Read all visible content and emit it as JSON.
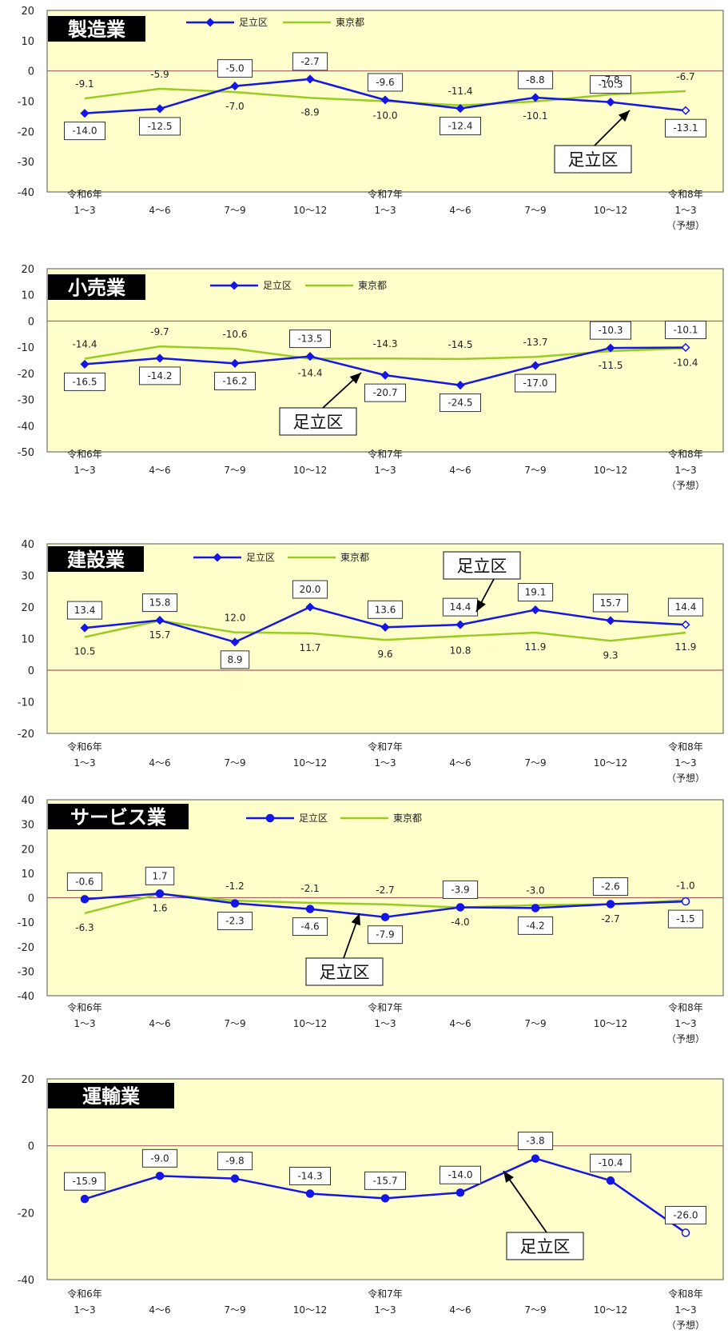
{
  "colors": {
    "plot_bg": "#FFFFCC",
    "adachi_line": "#1515E6",
    "tokyo_line": "#99CC22",
    "zero_line": "#A06060",
    "title_box": "#000000",
    "title_text": "#FFFFFF"
  },
  "icons": {
    "adachi_marker": "diamond-marker-icon",
    "callout_arrow": "arrow-icon"
  },
  "chart_data": [
    {
      "type": "line",
      "title": "製造業",
      "categories": [
        [
          "令和6年",
          "1～3"
        ],
        [
          "",
          "4～6"
        ],
        [
          "",
          "7～9"
        ],
        [
          "",
          "10～12"
        ],
        [
          "令和7年",
          "1～3"
        ],
        [
          "",
          "4～6"
        ],
        [
          "",
          "7～9"
        ],
        [
          "",
          "10～12"
        ],
        [
          "令和8年",
          "1～3",
          "（予想）"
        ]
      ],
      "ylim": [
        -40,
        20
      ],
      "yticks": [
        "20",
        "10",
        "0",
        "-10",
        "-20",
        "-30",
        "-40"
      ],
      "series": [
        {
          "name": "足立区",
          "values": [
            -14.0,
            -12.5,
            -5.0,
            -2.7,
            -9.6,
            -12.4,
            -8.8,
            -10.3,
            -13.1
          ],
          "labels": [
            "-14.0",
            "-12.5",
            "-5.0",
            "-2.7",
            "-9.6",
            "-12.4",
            "-8.8",
            "-10.3",
            "-13.1"
          ],
          "marker": "diamond"
        },
        {
          "name": "東京都",
          "values": [
            -9.1,
            -5.9,
            -7.0,
            -8.9,
            -10.0,
            -11.4,
            -10.1,
            -7.8,
            -6.7
          ],
          "labels": [
            "-9.1",
            "-5.9",
            "-7.0",
            "-8.9",
            "-10.0",
            "-11.4",
            "-10.1",
            "-7.8",
            "-6.7"
          ]
        }
      ],
      "callout": "足立区"
    },
    {
      "type": "line",
      "title": "小売業",
      "categories": [
        [
          "令和6年",
          "1～3"
        ],
        [
          "",
          "4～6"
        ],
        [
          "",
          "7～9"
        ],
        [
          "",
          "10～12"
        ],
        [
          "令和7年",
          "1～3"
        ],
        [
          "",
          "4～6"
        ],
        [
          "",
          "7～9"
        ],
        [
          "",
          "10～12"
        ],
        [
          "令和8年",
          "1～3",
          "（予想）"
        ]
      ],
      "ylim": [
        -50,
        20
      ],
      "yticks": [
        "20",
        "10",
        "0",
        "-10",
        "-20",
        "-30",
        "-40",
        "-50"
      ],
      "series": [
        {
          "name": "足立区",
          "values": [
            -16.5,
            -14.2,
            -16.2,
            -13.5,
            -20.7,
            -24.5,
            -17.0,
            -10.3,
            -10.1
          ],
          "labels": [
            "-16.5",
            "-14.2",
            "-16.2",
            "-13.5",
            "-20.7",
            "-24.5",
            "-17.0",
            "-10.3",
            "-10.1"
          ],
          "marker": "diamond"
        },
        {
          "name": "東京都",
          "values": [
            -14.4,
            -9.7,
            -10.6,
            -14.4,
            -14.3,
            -14.5,
            -13.7,
            -11.5,
            -10.4
          ],
          "labels": [
            "-14.4",
            "-9.7",
            "-10.6",
            "-14.4",
            "-14.3",
            "-14.5",
            "-13.7",
            "-11.5",
            "-10.4"
          ]
        }
      ],
      "callout": "足立区"
    },
    {
      "type": "line",
      "title": "建設業",
      "categories": [
        [
          "令和6年",
          "1～3"
        ],
        [
          "",
          "4～6"
        ],
        [
          "",
          "7～9"
        ],
        [
          "",
          "10～12"
        ],
        [
          "令和7年",
          "1～3"
        ],
        [
          "",
          "4～6"
        ],
        [
          "",
          "7～9"
        ],
        [
          "",
          "10～12"
        ],
        [
          "令和8年",
          "1～3",
          "（予想）"
        ]
      ],
      "ylim": [
        -20,
        40
      ],
      "yticks": [
        "40",
        "30",
        "20",
        "10",
        "0",
        "-10",
        "-20"
      ],
      "series": [
        {
          "name": "足立区",
          "values": [
            13.4,
            15.8,
            8.9,
            20.0,
            13.6,
            14.4,
            19.1,
            15.7,
            14.4
          ],
          "labels": [
            "13.4",
            "15.8",
            "8.9",
            "20.0",
            "13.6",
            "14.4",
            "19.1",
            "15.7",
            "14.4"
          ],
          "marker": "diamond"
        },
        {
          "name": "東京都",
          "values": [
            10.5,
            15.7,
            12.0,
            11.7,
            9.6,
            10.8,
            11.9,
            9.3,
            11.9
          ],
          "labels": [
            "10.5",
            "15.7",
            "12.0",
            "11.7",
            "9.6",
            "10.8",
            "11.9",
            "9.3",
            "11.9"
          ]
        }
      ],
      "callout": "足立区"
    },
    {
      "type": "line",
      "title": "サービス業",
      "categories": [
        [
          "令和6年",
          "1～3"
        ],
        [
          "",
          "4～6"
        ],
        [
          "",
          "7～9"
        ],
        [
          "",
          "10～12"
        ],
        [
          "令和7年",
          "1～3"
        ],
        [
          "",
          "4～6"
        ],
        [
          "",
          "7～9"
        ],
        [
          "",
          "10～12"
        ],
        [
          "令和8年",
          "1～3",
          "（予想）"
        ]
      ],
      "ylim": [
        -40,
        40
      ],
      "yticks": [
        "40",
        "30",
        "20",
        "10",
        "0",
        "-10",
        "-20",
        "-30",
        "-40"
      ],
      "series": [
        {
          "name": "足立区",
          "values": [
            -0.6,
            1.7,
            -2.3,
            -4.6,
            -7.9,
            -3.9,
            -4.2,
            -2.6,
            -1.5
          ],
          "labels": [
            "-0.6",
            "1.7",
            "-2.3",
            "-4.6",
            "-7.9",
            "-3.9",
            "-4.2",
            "-2.6",
            "-1.5"
          ],
          "marker": "circle"
        },
        {
          "name": "東京都",
          "values": [
            -6.3,
            1.6,
            -1.2,
            -2.1,
            -2.7,
            -4.0,
            -3.0,
            -2.7,
            -1.0
          ],
          "labels": [
            "-6.3",
            "1.6",
            "-1.2",
            "-2.1",
            "-2.7",
            "-4.0",
            "-3.0",
            "-2.7",
            "-1.0"
          ]
        }
      ],
      "callout": "足立区"
    },
    {
      "type": "line",
      "title": "運輸業",
      "categories": [
        [
          "令和6年",
          "1～3"
        ],
        [
          "",
          "4～6"
        ],
        [
          "",
          "7～9"
        ],
        [
          "",
          "10～12"
        ],
        [
          "令和7年",
          "1～3"
        ],
        [
          "",
          "4～6"
        ],
        [
          "",
          "7～9"
        ],
        [
          "",
          "10～12"
        ],
        [
          "令和8年",
          "1～3",
          "（予想）"
        ]
      ],
      "ylim": [
        -40,
        20
      ],
      "yticks": [
        "20",
        "0",
        "-20",
        "-40"
      ],
      "series": [
        {
          "name": "足立区",
          "values": [
            -15.9,
            -9.0,
            -9.8,
            -14.3,
            -15.7,
            -14.0,
            -3.8,
            -10.4,
            -26.0
          ],
          "labels": [
            "-15.9",
            "-9.0",
            "-9.8",
            "-14.3",
            "-15.7",
            "-14.0",
            "-3.8",
            "-10.4",
            "-26.0"
          ],
          "marker": "circle"
        }
      ],
      "callout": "足立区"
    }
  ]
}
